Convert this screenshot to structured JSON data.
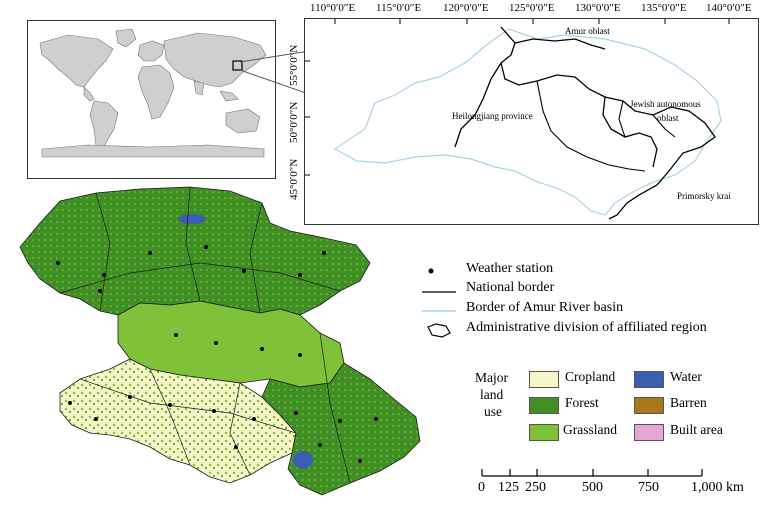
{
  "inset_world": {
    "name": "world-overview"
  },
  "inset_detail": {
    "lon_labels": [
      "110°0′0″E",
      "115°0′0″E",
      "120°0′0″E",
      "125°0′0″E",
      "130°0′0″E",
      "135°0′0″E",
      "140°0′0″E"
    ],
    "lat_labels": [
      "55°0′0″N",
      "50°0′0″N",
      "45°0′0″N"
    ],
    "places": {
      "amur": "Amur oblast",
      "heilongjiang": "Heilongjiang province",
      "jewish_line1": "Jewish autonomous",
      "jewish_line2": "oblast",
      "primorsky": "Primorsky krai"
    }
  },
  "legend": {
    "weather_station": "Weather station",
    "national_border": "National border",
    "basin_border": "Border of Amur River basin",
    "admin_division": "Administrative division of affiliated region"
  },
  "land_use": {
    "title_line1": "Major",
    "title_line2": "land",
    "title_line3": "use",
    "items": [
      {
        "label": "Cropland",
        "color": "#f6f6c8"
      },
      {
        "label": "Water",
        "color": "#3a5fb0"
      },
      {
        "label": "Forest",
        "color": "#3f8f24"
      },
      {
        "label": "Barren",
        "color": "#a9781a"
      },
      {
        "label": "Grassland",
        "color": "#7fc23a"
      },
      {
        "label": "Built area",
        "color": "#e3a7d0"
      }
    ]
  },
  "scale_bar": {
    "ticks": [
      "0",
      "125",
      "250",
      "500",
      "750",
      "1,000 km"
    ]
  },
  "colors": {
    "forest": "#3f8f24",
    "grassland": "#7fc23a",
    "cropland": "#f6f6c8",
    "water": "#3a5fb0",
    "basin_border": "#a8d4e6",
    "land_gray": "#c8c8c8"
  }
}
